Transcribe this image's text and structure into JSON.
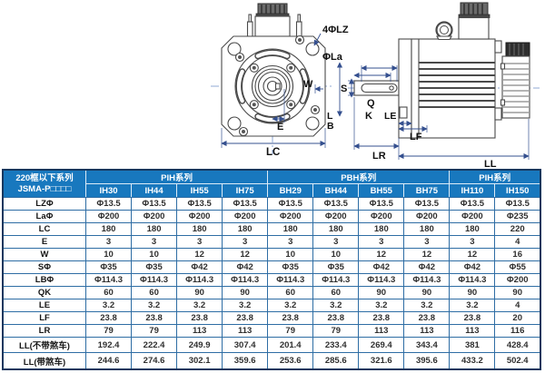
{
  "drawing": {
    "labels": {
      "lz": "4ΦLZ",
      "la": "ΦLa",
      "w": "W",
      "e": "E",
      "lc": "LC",
      "s": "S",
      "q": "Q",
      "k": "K",
      "lb_l": "L",
      "lb_b": "B",
      "le": "LE",
      "lf": "LF",
      "lr": "LR",
      "ll": "LL"
    }
  },
  "table": {
    "corner_line1": "220框以下系列",
    "corner_line2": "JSMA-P□□□□",
    "groups": [
      {
        "label": "PIH系列",
        "span": 4
      },
      {
        "label": "PBH系列",
        "span": 4
      },
      {
        "label": "PIH系列",
        "span": 2
      }
    ],
    "columns": [
      "IH30",
      "IH44",
      "IH55",
      "IH75",
      "BH29",
      "BH44",
      "BH55",
      "BH75",
      "IH110",
      "IH150"
    ],
    "rows": [
      {
        "label": "LZΦ",
        "values": [
          "Φ13.5",
          "Φ13.5",
          "Φ13.5",
          "Φ13.5",
          "Φ13.5",
          "Φ13.5",
          "Φ13.5",
          "Φ13.5",
          "Φ13.5",
          "Φ13.5"
        ]
      },
      {
        "label": "LaΦ",
        "values": [
          "Φ200",
          "Φ200",
          "Φ200",
          "Φ200",
          "Φ200",
          "Φ200",
          "Φ200",
          "Φ200",
          "Φ200",
          "Φ235"
        ]
      },
      {
        "label": "LC",
        "values": [
          "180",
          "180",
          "180",
          "180",
          "180",
          "180",
          "180",
          "180",
          "180",
          "220"
        ]
      },
      {
        "label": "E",
        "values": [
          "3",
          "3",
          "3",
          "3",
          "3",
          "3",
          "3",
          "3",
          "3",
          "4"
        ]
      },
      {
        "label": "W",
        "values": [
          "10",
          "10",
          "12",
          "12",
          "10",
          "10",
          "12",
          "12",
          "12",
          "16"
        ]
      },
      {
        "label": "SΦ",
        "values": [
          "Φ35",
          "Φ35",
          "Φ42",
          "Φ42",
          "Φ35",
          "Φ35",
          "Φ42",
          "Φ42",
          "Φ42",
          "Φ55"
        ]
      },
      {
        "label": "LBΦ",
        "values": [
          "Φ114.3",
          "Φ114.3",
          "Φ114.3",
          "Φ114.3",
          "Φ114.3",
          "Φ114.3",
          "Φ114.3",
          "Φ114.3",
          "Φ114.3",
          "Φ200"
        ]
      },
      {
        "label": "QK",
        "values": [
          "60",
          "60",
          "90",
          "90",
          "60",
          "60",
          "90",
          "90",
          "90",
          "90"
        ]
      },
      {
        "label": "LE",
        "values": [
          "3.2",
          "3.2",
          "3.2",
          "3.2",
          "3.2",
          "3.2",
          "3.2",
          "3.2",
          "3.2",
          "4"
        ]
      },
      {
        "label": "LF",
        "values": [
          "23.8",
          "23.8",
          "23.8",
          "23.8",
          "23.8",
          "23.8",
          "23.8",
          "23.8",
          "23.8",
          "20"
        ]
      },
      {
        "label": "LR",
        "values": [
          "79",
          "79",
          "113",
          "113",
          "79",
          "79",
          "113",
          "113",
          "113",
          "116"
        ]
      },
      {
        "label": "LL(不带煞车)",
        "values": [
          "192.4",
          "222.4",
          "249.9",
          "307.4",
          "201.4",
          "233.4",
          "269.4",
          "343.4",
          "381",
          "428.4"
        ]
      },
      {
        "label": "LL(带煞车)",
        "values": [
          "244.6",
          "274.6",
          "302.1",
          "359.6",
          "253.6",
          "285.6",
          "321.6",
          "395.6",
          "433.2",
          "502.4"
        ]
      }
    ],
    "colors": {
      "header_bg": "#1878be",
      "inner_border": "#2e6da4",
      "outer_border": "#17375e",
      "header_text": "#ffffff",
      "cell_text": "#2f2f2f"
    }
  }
}
